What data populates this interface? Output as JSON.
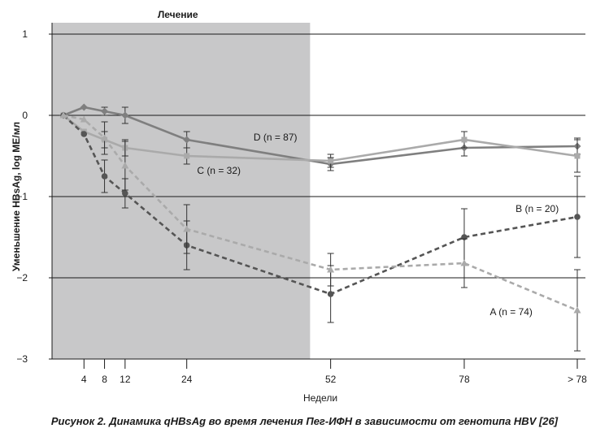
{
  "caption": "Рисунок 2. Динамика qHBsAg во время лечения Пег-ИФН в зависимости от генотипа HBV [26]",
  "chart_data": {
    "type": "line",
    "ylabel": "Уменьшение HBsAg, log МЕ/мл",
    "xlabel": "Недели",
    "ylim": [
      -3,
      1
    ],
    "yticks": [
      1,
      0,
      -1,
      -2,
      -3
    ],
    "ytick_labels": [
      "1",
      "0",
      "−1",
      "−2",
      "−3"
    ],
    "x": [
      0,
      4,
      8,
      12,
      24,
      52,
      78,
      100
    ],
    "xtick_values": [
      4,
      8,
      12,
      24,
      52,
      78,
      100
    ],
    "xtick_labels": [
      "4",
      "8",
      "12",
      "24",
      "52",
      "78",
      "> 78"
    ],
    "grid": "horizontal",
    "shaded_region": {
      "label": "Лечение",
      "x_start": 0,
      "x_end": 48
    },
    "series": [
      {
        "name": "D (n = 87)",
        "color": "#7f7f7f",
        "style": "solid",
        "marker": "diamond",
        "x": [
          0,
          4,
          8,
          12,
          24,
          52,
          78,
          100
        ],
        "y": [
          0,
          0.1,
          0.05,
          0,
          -0.3,
          -0.6,
          -0.4,
          -0.38
        ],
        "err": [
          0,
          0,
          0.05,
          0.1,
          0.1,
          0.08,
          0.1,
          0.1
        ],
        "label_pos": [
          37,
          -0.27
        ]
      },
      {
        "name": "C (n = 32)",
        "color": "#aaaaaa",
        "style": "solid",
        "marker": "square",
        "x": [
          0,
          4,
          8,
          12,
          24,
          52,
          78,
          100
        ],
        "y": [
          0,
          -0.2,
          -0.3,
          -0.4,
          -0.5,
          -0.56,
          -0.3,
          -0.5
        ],
        "err": [
          0,
          0,
          0.1,
          0.1,
          0.1,
          0.08,
          0.1,
          0.2
        ],
        "label_pos": [
          26,
          -0.68
        ]
      },
      {
        "name": "B (n = 20)",
        "color": "#555555",
        "style": "dashed",
        "marker": "circle",
        "x": [
          0,
          4,
          8,
          12,
          24,
          52,
          78,
          100
        ],
        "y": [
          0,
          -0.23,
          -0.75,
          -0.96,
          -1.6,
          -2.2,
          -1.5,
          -1.25
        ],
        "err": [
          0,
          0,
          0.2,
          0.18,
          0.3,
          0.35,
          0.35,
          0.5
        ],
        "label_pos": [
          88,
          -1.15
        ]
      },
      {
        "name": "A (n = 74)",
        "color": "#aaaaaa",
        "style": "dashed",
        "marker": "triangle",
        "x": [
          0,
          4,
          8,
          12,
          24,
          52,
          78,
          100
        ],
        "y": [
          0,
          -0.05,
          -0.28,
          -0.62,
          -1.4,
          -1.9,
          -1.82,
          -2.4
        ],
        "err": [
          0,
          0,
          0.2,
          0.3,
          0.3,
          0.2,
          0.3,
          0.5
        ],
        "label_pos": [
          83,
          -2.42
        ]
      }
    ]
  }
}
